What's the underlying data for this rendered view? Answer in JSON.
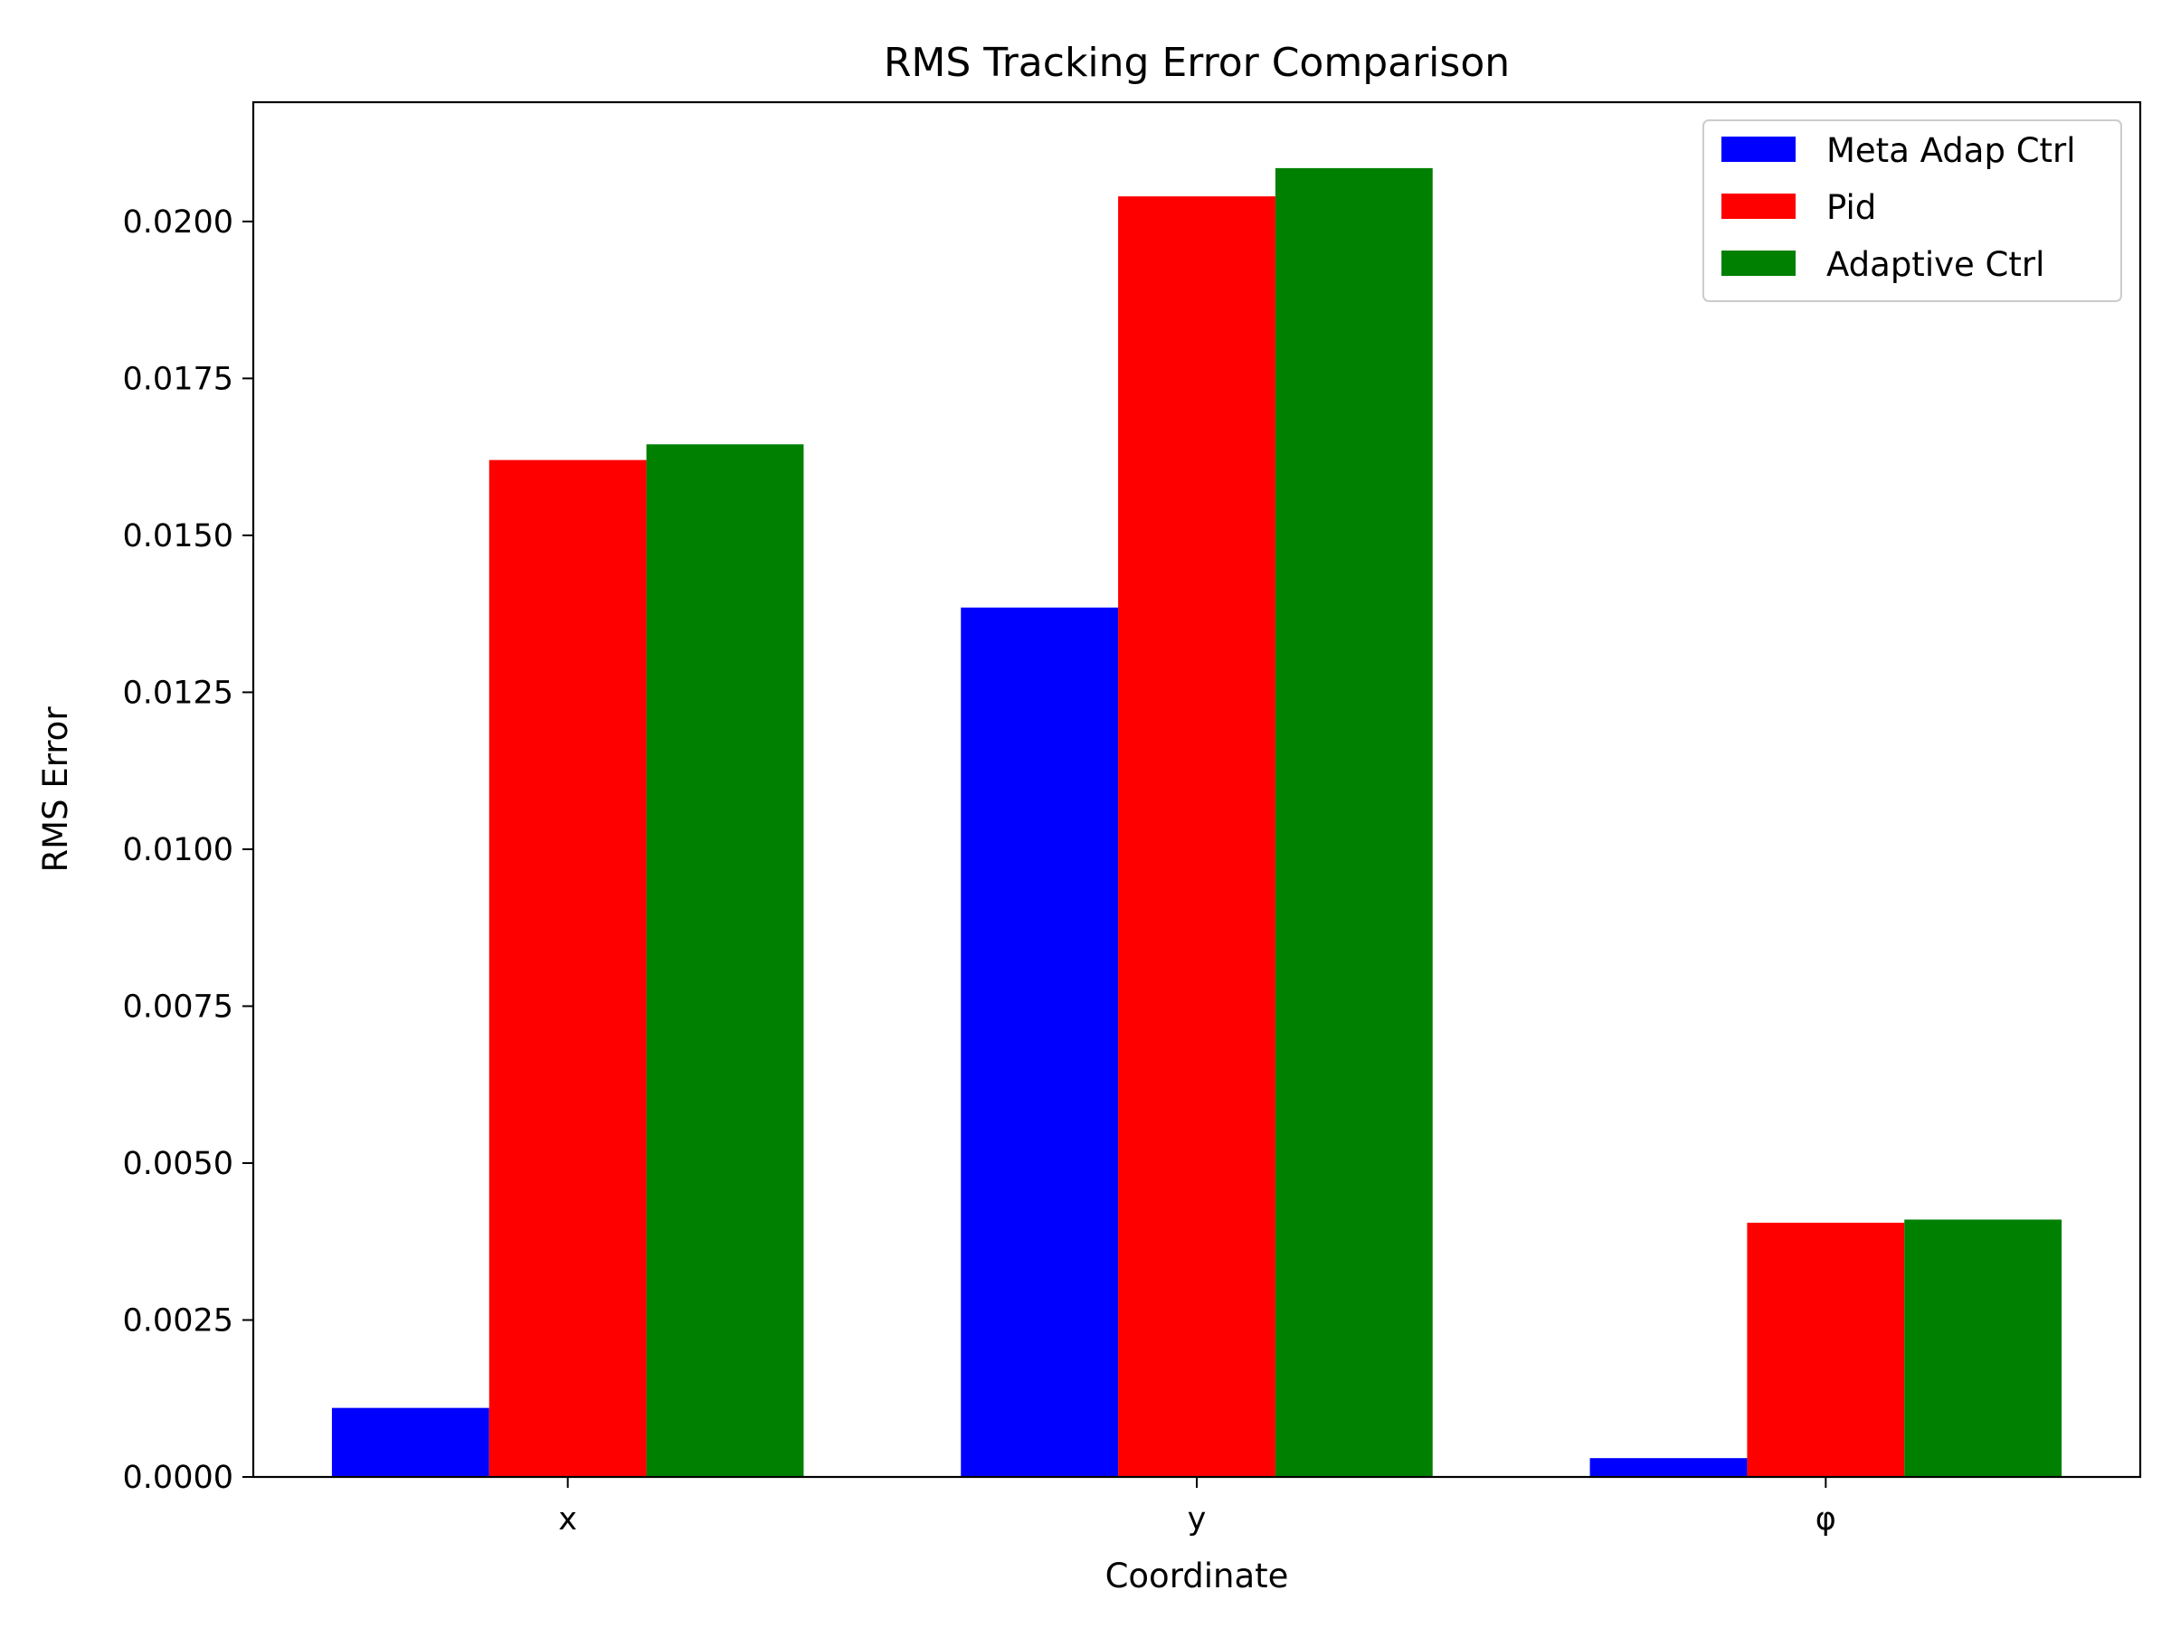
{
  "chart_data": {
    "type": "bar",
    "title": "RMS Tracking Error Comparison",
    "xlabel": "Coordinate",
    "ylabel": "RMS Error",
    "categories": [
      "x",
      "y",
      "φ"
    ],
    "series": [
      {
        "name": "Meta Adap Ctrl",
        "color": "#0000ff",
        "values": [
          0.0011,
          0.01385,
          0.0003
        ]
      },
      {
        "name": "Pid",
        "color": "#ff0000",
        "values": [
          0.0162,
          0.0204,
          0.00405
        ]
      },
      {
        "name": "Adaptive Ctrl",
        "color": "#008000",
        "values": [
          0.01645,
          0.02085,
          0.0041
        ]
      }
    ],
    "ylim": [
      0,
      0.0219
    ],
    "yticks": [
      0.0,
      0.0025,
      0.005,
      0.0075,
      0.01,
      0.0125,
      0.015,
      0.0175,
      0.02
    ],
    "ytick_labels": [
      "0.0000",
      "0.0025",
      "0.0050",
      "0.0075",
      "0.0100",
      "0.0125",
      "0.0150",
      "0.0175",
      "0.0200"
    ],
    "grid": false,
    "legend_position": "top-right"
  }
}
